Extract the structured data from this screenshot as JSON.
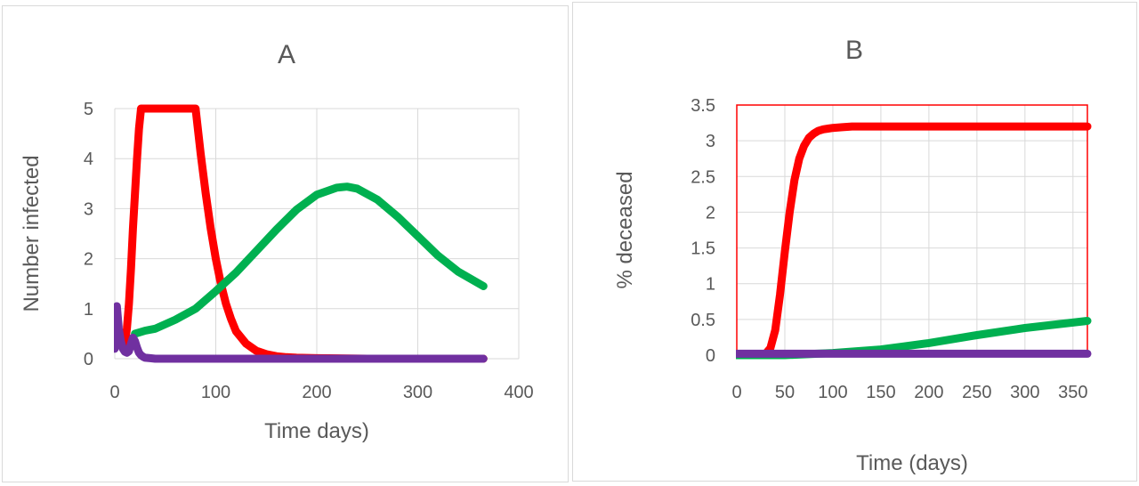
{
  "chart_data": [
    {
      "type": "line",
      "title": "A",
      "xlabel": "Time days)",
      "ylabel": "Number infected",
      "xlim": [
        0,
        400
      ],
      "ylim": [
        0,
        5
      ],
      "xticks": [
        "0",
        "100",
        "200",
        "300",
        "400"
      ],
      "yticks": [
        "0",
        "1",
        "2",
        "3",
        "4",
        "5"
      ],
      "grid": true,
      "series": [
        {
          "color": "#ff0000",
          "x": [
            10,
            12,
            14,
            16,
            18,
            20,
            22,
            24,
            26,
            28,
            80,
            85,
            90,
            95,
            100,
            105,
            110,
            115,
            120,
            130,
            140,
            150,
            160,
            170,
            180,
            200,
            250,
            300,
            365
          ],
          "y": [
            0.3,
            0.6,
            1.1,
            1.8,
            2.6,
            3.3,
            4.0,
            4.6,
            5.0,
            5.0,
            5.0,
            4.1,
            3.3,
            2.6,
            2.0,
            1.5,
            1.1,
            0.8,
            0.55,
            0.3,
            0.16,
            0.09,
            0.05,
            0.03,
            0.02,
            0.01,
            0.0,
            0.0,
            0.0
          ]
        },
        {
          "color": "#00b050",
          "x": [
            20,
            30,
            40,
            60,
            80,
            100,
            120,
            140,
            160,
            180,
            200,
            220,
            230,
            240,
            260,
            280,
            300,
            320,
            340,
            365
          ],
          "y": [
            0.5,
            0.56,
            0.6,
            0.78,
            1.0,
            1.35,
            1.72,
            2.15,
            2.58,
            2.98,
            3.28,
            3.42,
            3.44,
            3.4,
            3.18,
            2.84,
            2.45,
            2.06,
            1.74,
            1.45
          ]
        },
        {
          "color": "#7030a0",
          "x": [
            0,
            2,
            4,
            6,
            8,
            10,
            12,
            14,
            16,
            18,
            20,
            22,
            24,
            26,
            28,
            30,
            35,
            40,
            60,
            100,
            200,
            300,
            365
          ],
          "y": [
            0.2,
            1.05,
            0.6,
            0.35,
            0.2,
            0.14,
            0.12,
            0.15,
            0.3,
            0.42,
            0.35,
            0.22,
            0.12,
            0.07,
            0.04,
            0.02,
            0.01,
            0.0,
            0.0,
            0.0,
            0.0,
            0.0,
            0.0
          ]
        }
      ]
    },
    {
      "type": "line",
      "title": "B",
      "xlabel": "Time (days)",
      "ylabel": "% deceased",
      "xlim": [
        0,
        365
      ],
      "ylim": [
        0,
        3.5
      ],
      "xticks": [
        "0",
        "50",
        "100",
        "150",
        "200",
        "250",
        "300",
        "350"
      ],
      "yticks": [
        "0",
        "0.5",
        "1",
        "1.5",
        "2",
        "2.5",
        "3",
        "3.5"
      ],
      "grid": true,
      "series": [
        {
          "color": "#ff0000",
          "x": [
            0,
            20,
            30,
            35,
            40,
            45,
            50,
            55,
            60,
            65,
            70,
            75,
            80,
            85,
            90,
            95,
            100,
            110,
            120,
            140,
            160,
            200,
            250,
            300,
            365
          ],
          "y": [
            0.0,
            0.0,
            0.02,
            0.1,
            0.35,
            0.85,
            1.45,
            2.0,
            2.45,
            2.75,
            2.93,
            3.04,
            3.1,
            3.14,
            3.16,
            3.17,
            3.18,
            3.19,
            3.2,
            3.2,
            3.2,
            3.2,
            3.2,
            3.2,
            3.2
          ]
        },
        {
          "color": "#00b050",
          "x": [
            0,
            50,
            100,
            150,
            200,
            250,
            300,
            365
          ],
          "y": [
            0.0,
            0.0,
            0.03,
            0.08,
            0.17,
            0.28,
            0.38,
            0.48
          ]
        },
        {
          "color": "#7030a0",
          "x": [
            0,
            365
          ],
          "y": [
            0.02,
            0.02
          ]
        }
      ]
    }
  ]
}
